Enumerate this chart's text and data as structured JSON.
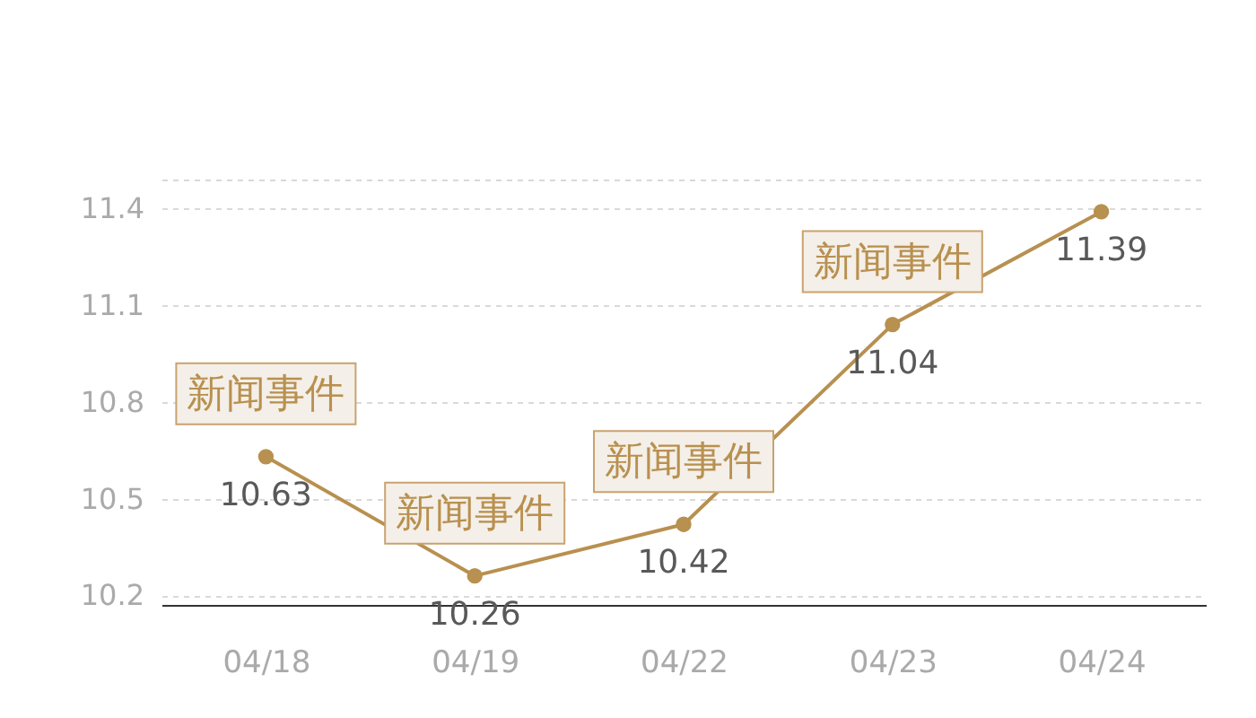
{
  "chart_data": {
    "type": "line",
    "categories": [
      "04/18",
      "04/19",
      "04/22",
      "04/23",
      "04/24"
    ],
    "series": [
      {
        "color": "#b8904f",
        "values": [
          10.63,
          10.26,
          10.42,
          11.04,
          11.39
        ]
      }
    ],
    "ylim": [
      10.17,
      11.49
    ],
    "yticks": [
      10.2,
      10.5,
      10.8,
      11.1,
      11.4,
      {
        "value": 11.49,
        "label": null
      }
    ],
    "grid": "y",
    "marker": "circle",
    "line_style": "solid",
    "data_labels": true,
    "annotations": [
      {
        "text": "新闻事件",
        "x": "04/18",
        "y": 10.63
      },
      {
        "text": "新闻事件",
        "x": "04/19",
        "y": 10.26
      },
      {
        "text": "新闻事件",
        "x": "04/22",
        "y": 10.42
      },
      {
        "text": "新闻事件",
        "x": "04/23",
        "y": 11.04
      }
    ]
  }
}
